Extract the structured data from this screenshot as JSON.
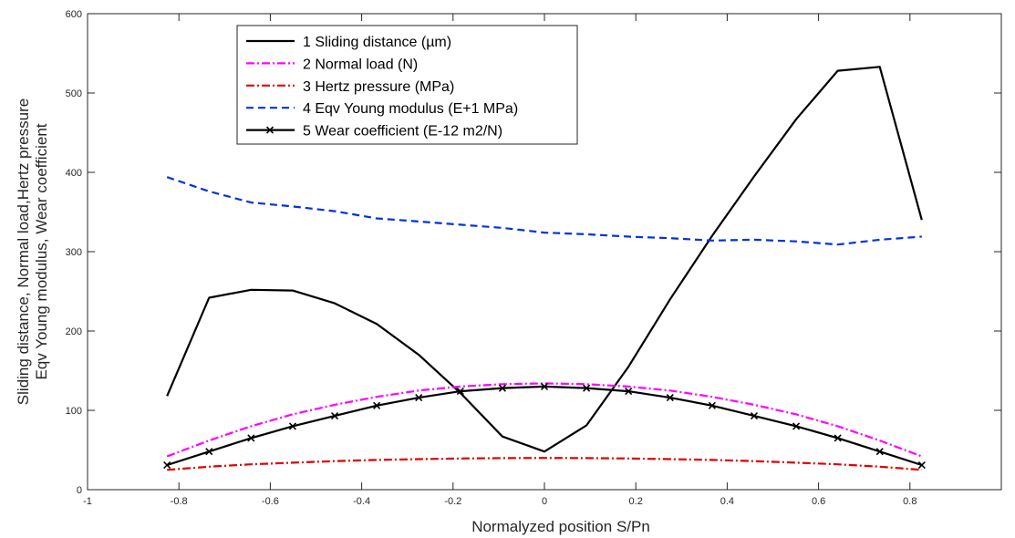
{
  "chart_data": {
    "type": "line",
    "xlabel": "Normalyzed position S/Pn",
    "ylabel": [
      "Sliding distance, Normal load,Hertz pressure",
      "Eqv Young modulus, Wear coefficient"
    ],
    "xlim": [
      -1,
      1
    ],
    "ylim": [
      0,
      600
    ],
    "xticks": [
      -1,
      -0.8,
      -0.6,
      -0.4,
      -0.2,
      0,
      0.2,
      0.4,
      0.6,
      0.8
    ],
    "xtick_labels": [
      "-1",
      "-0.8",
      "-0.6",
      "-0.4",
      "-0.2",
      "0",
      "0.2",
      "0.4",
      "0.6",
      "0.8"
    ],
    "yticks": [
      0,
      100,
      200,
      300,
      400,
      500,
      600
    ],
    "ytick_labels": [
      "0",
      "100",
      "200",
      "300",
      "400",
      "500",
      "600"
    ],
    "grid": false,
    "legend_position": "top-left",
    "x": [
      -0.826,
      -0.734,
      -0.642,
      -0.551,
      -0.459,
      -0.367,
      -0.275,
      -0.184,
      -0.092,
      0,
      0.092,
      0.184,
      0.275,
      0.367,
      0.459,
      0.551,
      0.642,
      0.734,
      0.826
    ],
    "series": [
      {
        "name": "1 Sliding distance (µm)",
        "color": "#000000",
        "style": "solid",
        "marker": "none",
        "values": [
          118,
          242,
          252,
          251,
          235,
          209,
          170,
          122,
          67,
          48,
          81,
          155,
          240,
          320,
          395,
          467,
          528,
          533,
          340
        ]
      },
      {
        "name": "2 Normal load (N)",
        "color": "#ff00ff",
        "style": "dashdot",
        "marker": "none",
        "values": [
          42,
          62,
          80,
          95,
          107,
          117,
          125,
          130,
          133,
          134,
          133,
          130,
          125,
          117,
          107,
          95,
          80,
          62,
          42
        ]
      },
      {
        "name": "3 Hertz pressure (MPa)",
        "color": "#e00000",
        "style": "dashdot",
        "marker": "none",
        "values": [
          25,
          29,
          32,
          34,
          36,
          37.5,
          38.5,
          39.3,
          39.8,
          40,
          39.8,
          39.3,
          38.5,
          37.5,
          36,
          34,
          32,
          29,
          25
        ]
      },
      {
        "name": "4 Eqv Young modulus (E+1 MPa)",
        "color": "#0033dd",
        "style": "dashed",
        "marker": "none",
        "values": [
          394,
          376,
          362,
          357,
          351,
          342,
          338,
          334,
          330,
          324,
          322,
          319,
          317,
          314,
          315,
          313,
          309,
          315,
          319
        ]
      },
      {
        "name": "5 Wear coefficient (E-12 m2/N)",
        "color": "#000000",
        "style": "solid",
        "marker": "x",
        "values": [
          31,
          48,
          65,
          80,
          93,
          106,
          116,
          124,
          128,
          130,
          128,
          124,
          116,
          106,
          93,
          80,
          65,
          48,
          31
        ]
      }
    ]
  }
}
